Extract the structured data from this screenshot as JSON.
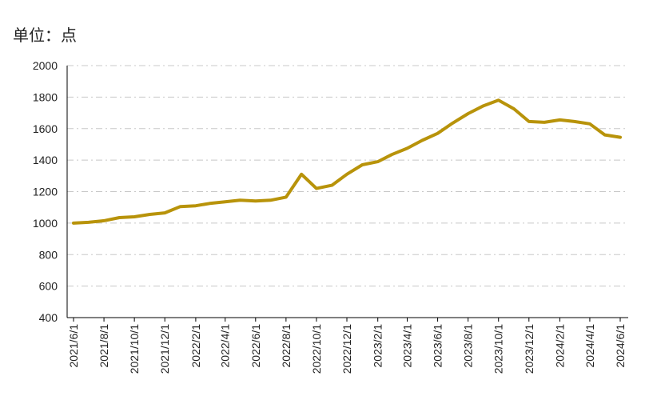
{
  "unit_label": "单位：点",
  "chart_data": {
    "type": "line",
    "title": "",
    "xlabel": "",
    "ylabel": "",
    "ylim": [
      400,
      2000
    ],
    "yticks": [
      400,
      600,
      800,
      1000,
      1200,
      1400,
      1600,
      1800,
      2000
    ],
    "xticks": [
      "2021/6/1",
      "2021/8/1",
      "2021/10/1",
      "2021/12/1",
      "2022/2/1",
      "2022/4/1",
      "2022/6/1",
      "2022/8/1",
      "2022/10/1",
      "2022/12/1",
      "2023/2/1",
      "2023/4/1",
      "2023/6/1",
      "2023/8/1",
      "2023/10/1",
      "2023/12/1",
      "2024/2/1",
      "2024/4/1",
      "2024/6/1"
    ],
    "grid": "horizontal dash-dot",
    "colors": {
      "line": "#B8930A",
      "grid": "#C8C8C8",
      "axis": "#000000"
    },
    "series": [
      {
        "x": [
          "2021/6/1",
          "2021/7/1",
          "2021/8/1",
          "2021/9/1",
          "2021/10/1",
          "2021/11/1",
          "2021/12/1",
          "2022/1/1",
          "2022/2/1",
          "2022/3/1",
          "2022/4/1",
          "2022/5/1",
          "2022/6/1",
          "2022/7/1",
          "2022/8/1",
          "2022/9/1",
          "2022/10/1",
          "2022/11/1",
          "2022/12/1",
          "2023/1/1",
          "2023/2/1",
          "2023/3/1",
          "2023/4/1",
          "2023/5/1",
          "2023/6/1",
          "2023/7/1",
          "2023/8/1",
          "2023/9/1",
          "2023/10/1",
          "2023/11/1",
          "2023/12/1",
          "2024/1/1",
          "2024/2/1",
          "2024/3/1",
          "2024/4/1",
          "2024/5/1",
          "2024/6/1"
        ],
        "values": [
          1000,
          1005,
          1015,
          1035,
          1040,
          1055,
          1065,
          1105,
          1110,
          1125,
          1135,
          1145,
          1140,
          1145,
          1165,
          1310,
          1220,
          1240,
          1310,
          1370,
          1390,
          1435,
          1475,
          1525,
          1570,
          1635,
          1695,
          1745,
          1780,
          1725,
          1645,
          1640,
          1655,
          1645,
          1630,
          1560,
          1545
        ]
      }
    ]
  }
}
